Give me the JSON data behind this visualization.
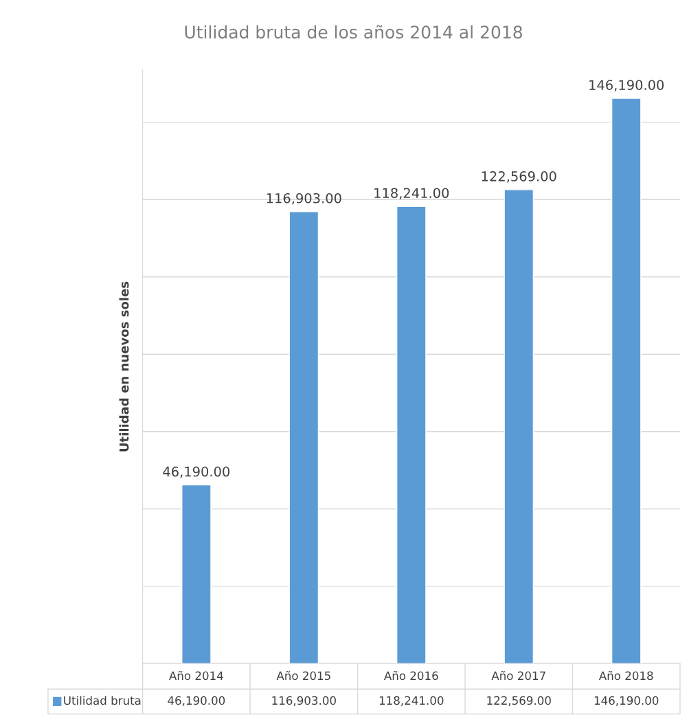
{
  "chart_data": {
    "type": "bar",
    "title": "Utilidad bruta de los años 2014 al 2018",
    "ylabel": "Utilidad en nuevos soles",
    "categories": [
      "Año 2014",
      "Año 2015",
      "Año 2016",
      "Año 2017",
      "Año 2018"
    ],
    "series": [
      {
        "name": "Utilidad bruta",
        "color": "#5b9bd5",
        "values": [
          46190,
          116903,
          118241,
          122569,
          146190
        ],
        "value_labels": [
          "46,190.00",
          "116,903.00",
          "118,241.00",
          "122,569.00",
          "146,190.00"
        ]
      }
    ],
    "grid": "y",
    "legend": "bottom left",
    "tick_labels": "x"
  }
}
